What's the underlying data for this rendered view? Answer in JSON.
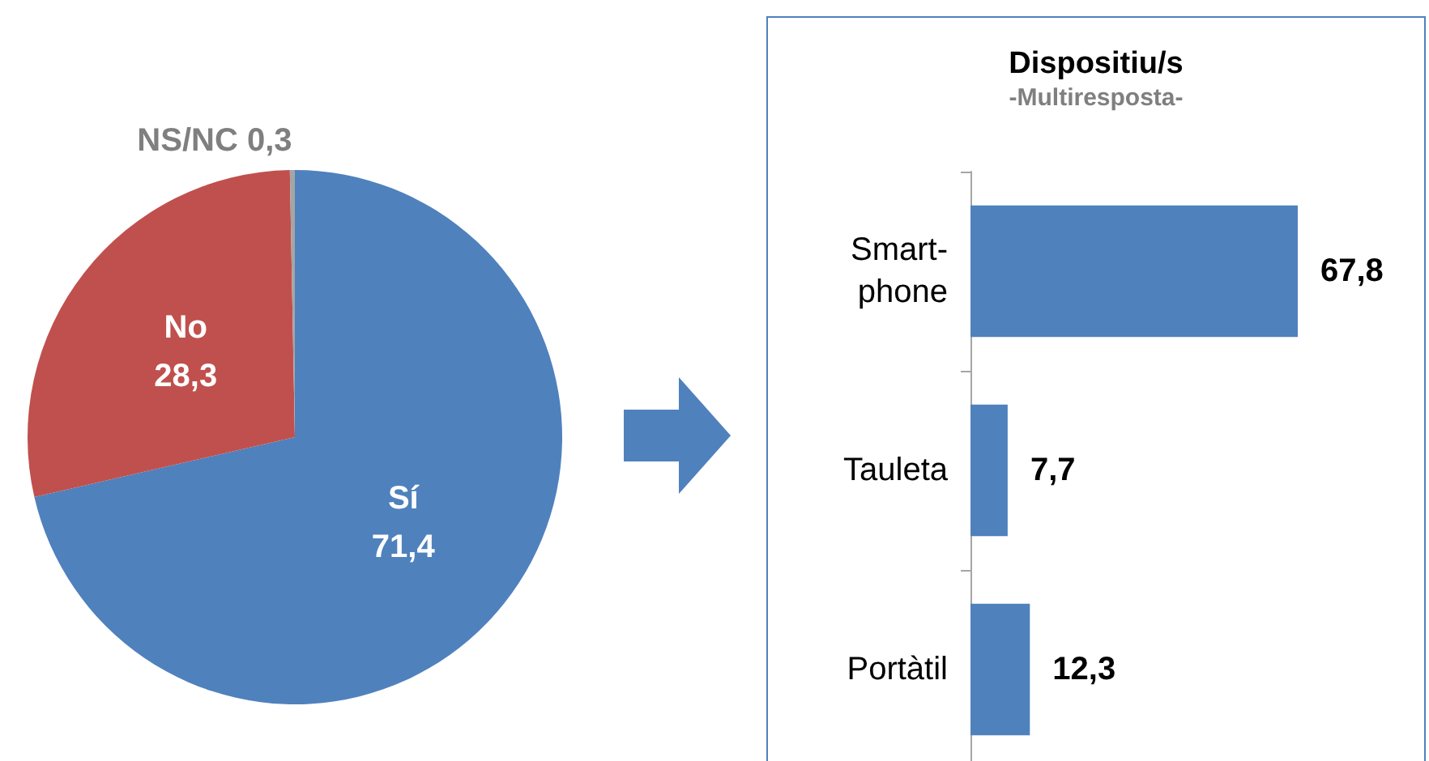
{
  "chart_data": [
    {
      "type": "pie",
      "categories": [
        "Sí",
        "No",
        "NS/NC"
      ],
      "values": [
        71.4,
        28.3,
        0.3
      ],
      "value_labels": [
        "71,4",
        "28,3",
        "0,3"
      ],
      "colors": [
        "#4f81bd",
        "#c0504d",
        "#a5a5a5"
      ],
      "legend": false
    },
    {
      "type": "bar",
      "orientation": "horizontal",
      "title": "Dispositiu/s",
      "subtitle": "-Multiresposta-",
      "categories": [
        "Smart-phone",
        "Tauleta",
        "Portàtil"
      ],
      "values": [
        67.8,
        7.7,
        12.3
      ],
      "value_labels": [
        "67,8",
        "7,7",
        "12,3"
      ],
      "color": "#4f81bd",
      "tick_labels": "y",
      "legend": false
    }
  ]
}
